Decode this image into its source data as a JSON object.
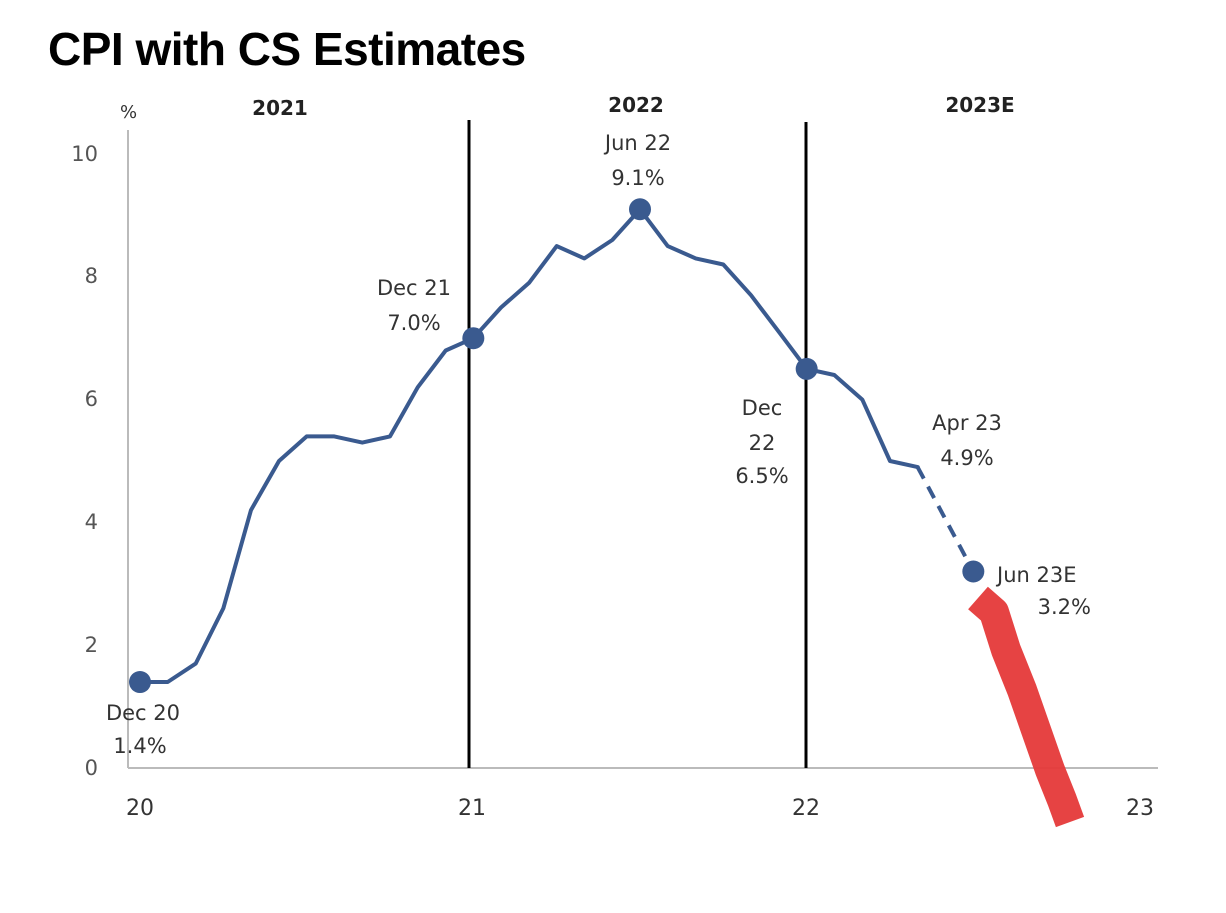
{
  "title": "CPI with CS Estimates",
  "chart_data": {
    "type": "line",
    "title": "CPI with CS Estimates",
    "ylabel": "%",
    "ylim": [
      0,
      10
    ],
    "yticks": [
      "0",
      "2",
      "4",
      "6",
      "8",
      "10"
    ],
    "xlim": [
      2020,
      2023
    ],
    "xticks": [
      "20",
      "21",
      "22",
      "23"
    ],
    "year_headers": [
      "2021",
      "2022",
      "2023E"
    ],
    "grid": false,
    "colors": {
      "line": "#3a5a8f",
      "highlight": "#e53939",
      "dividers": "#000000",
      "axes": "#bbbbbb"
    },
    "series": [
      {
        "x": [
          2020.0,
          2020.083,
          2020.167,
          2020.25,
          2020.333,
          2020.417,
          2020.5,
          2020.583,
          2020.667,
          2020.75,
          2020.833,
          2020.917,
          2021.0,
          2021.083,
          2021.167,
          2021.25,
          2021.333,
          2021.417,
          2021.5,
          2021.583,
          2021.667,
          2021.75,
          2021.833,
          2021.917,
          2022.0,
          2022.083,
          2022.167,
          2022.25,
          2022.333
        ],
        "values": [
          1.4,
          1.4,
          1.7,
          2.6,
          4.2,
          5.0,
          5.4,
          5.4,
          5.3,
          5.4,
          6.2,
          6.8,
          7.0,
          7.5,
          7.9,
          8.5,
          8.3,
          8.6,
          9.1,
          8.5,
          8.3,
          8.2,
          7.7,
          7.1,
          6.5,
          6.4,
          6.0,
          5.0,
          4.9
        ]
      }
    ],
    "estimate_segment": {
      "x": [
        2022.333,
        2022.5
      ],
      "values": [
        4.9,
        3.2
      ]
    },
    "highlighted_points": [
      {
        "x": 2020.0,
        "y": 1.4
      },
      {
        "x": 2021.0,
        "y": 7.0
      },
      {
        "x": 2021.5,
        "y": 9.1
      },
      {
        "x": 2022.0,
        "y": 6.5
      },
      {
        "x": 2022.5,
        "y": 3.2
      }
    ],
    "annotations": [
      {
        "lines": [
          "Dec 20",
          "1.4%"
        ]
      },
      {
        "lines": [
          "Dec 21",
          "7.0%"
        ]
      },
      {
        "lines": [
          "Jun 22",
          "9.1%"
        ]
      },
      {
        "lines": [
          "Dec",
          "22",
          "6.5%"
        ]
      },
      {
        "lines": [
          "Apr 23",
          "4.9%"
        ]
      },
      {
        "lines": [
          "Jun 23E",
          "3.2%"
        ]
      }
    ]
  }
}
